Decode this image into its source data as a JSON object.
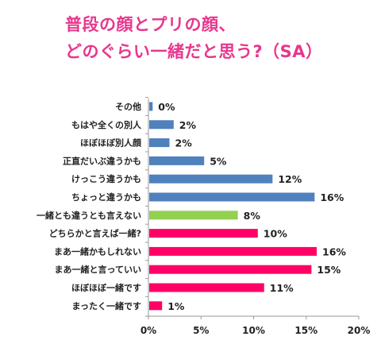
{
  "header": {
    "title_line1": "普段の顔とプリの顔、",
    "title_line2": "どのぐらい一緒だと思う?（SA）"
  },
  "chart_data": {
    "type": "bar",
    "orientation": "horizontal",
    "title": "普段の顔とプリの顔、どのぐらい一緒だと思う?（SA）",
    "categories": [
      "その他",
      "もはや全くの別人",
      "ほぼほぼ別人顔",
      "正直だいぶ違うかも",
      "けっこう違うかも",
      "ちょっと違うかも",
      "一緒とも違うとも言えない",
      "どちらかと言えば一緒?",
      "まあ一緒かもしれない",
      "まあ一緒と言っていい",
      "ほぼほぼ一緒です",
      "まったく一緒です"
    ],
    "values": [
      0.4,
      2.4,
      2.0,
      5.3,
      11.8,
      15.8,
      8.5,
      10.4,
      16.0,
      15.5,
      11.0,
      1.3
    ],
    "value_labels": [
      "0%",
      "2%",
      "2%",
      "5%",
      "12%",
      "16%",
      "8%",
      "10%",
      "16%",
      "15%",
      "11%",
      "1%"
    ],
    "bar_colors": [
      "#4f81bd",
      "#4f81bd",
      "#4f81bd",
      "#4f81bd",
      "#4f81bd",
      "#4f81bd",
      "#92d050",
      "#ff0066",
      "#ff0066",
      "#ff0066",
      "#ff0066",
      "#ff0066"
    ],
    "x_ticks": [
      "0%",
      "5%",
      "10%",
      "15%",
      "20%"
    ],
    "xlim": [
      0,
      20
    ],
    "xlabel": "",
    "ylabel": "",
    "grid": false,
    "legend": "none"
  }
}
